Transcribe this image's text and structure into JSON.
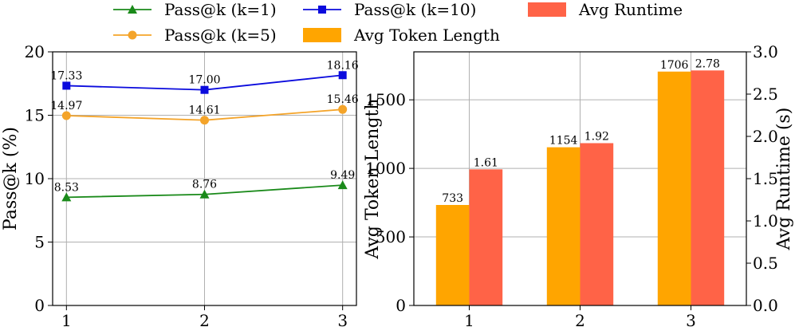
{
  "legend": [
    {
      "label": "Pass@k (k=1)",
      "kind": "line",
      "marker": "triangle",
      "color": "#1a8a1a"
    },
    {
      "label": "Pass@k (k=5)",
      "kind": "line",
      "marker": "circle",
      "color": "#f4a42a"
    },
    {
      "label": "Pass@k (k=10)",
      "kind": "line",
      "marker": "square",
      "color": "#0b0bdd"
    },
    {
      "label": "Avg Token Length",
      "kind": "patch",
      "color": "#ffa500"
    },
    {
      "label": "Avg Runtime",
      "kind": "patch",
      "color": "#ff6347"
    }
  ],
  "chart_data": [
    {
      "type": "line",
      "title": "",
      "xlabel": "",
      "ylabel": "Pass@k (%)",
      "x": [
        1,
        2,
        3
      ],
      "xticks": [
        "1",
        "2",
        "3"
      ],
      "xlim": [
        0.9,
        3.1
      ],
      "ylim": [
        0,
        20
      ],
      "yticks": [
        "0",
        "5",
        "10",
        "15",
        "20"
      ],
      "grid": true,
      "series": [
        {
          "name": "Pass@k (k=1)",
          "color": "#1a8a1a",
          "marker": "triangle",
          "values": [
            8.53,
            8.76,
            9.49
          ],
          "labels": [
            "8.53",
            "8.76",
            "9.49"
          ]
        },
        {
          "name": "Pass@k (k=5)",
          "color": "#f4a42a",
          "marker": "circle",
          "values": [
            14.97,
            14.61,
            15.46
          ],
          "labels": [
            "14.97",
            "14.61",
            "15.46"
          ]
        },
        {
          "name": "Pass@k (k=10)",
          "color": "#0b0bdd",
          "marker": "square",
          "values": [
            17.33,
            17.0,
            18.16
          ],
          "labels": [
            "17.33",
            "17.00",
            "18.16"
          ]
        }
      ]
    },
    {
      "type": "bar",
      "title": "",
      "xlabel": "",
      "categories": [
        "1",
        "2",
        "3"
      ],
      "xlim": [
        0.5,
        3.5
      ],
      "grid": true,
      "left_axis": {
        "label": "Avg Token Length",
        "ylim": [
          0,
          1850
        ],
        "yticks": [
          "0",
          "500",
          "1000",
          "1500"
        ]
      },
      "right_axis": {
        "label": "Avg Runtime (s)",
        "ylim": [
          0,
          3.0
        ],
        "yticks": [
          "0.0",
          "0.5",
          "1.0",
          "1.5",
          "2.0",
          "2.5",
          "3.0"
        ]
      },
      "series": [
        {
          "name": "Avg Token Length",
          "axis": "left",
          "color": "#ffa500",
          "values": [
            733,
            1154,
            1706
          ],
          "labels": [
            "733",
            "1154",
            "1706"
          ]
        },
        {
          "name": "Avg Runtime",
          "axis": "right",
          "color": "#ff6347",
          "values": [
            1.61,
            1.92,
            2.78
          ],
          "labels": [
            "1.61",
            "1.92",
            "2.78"
          ]
        }
      ]
    }
  ]
}
